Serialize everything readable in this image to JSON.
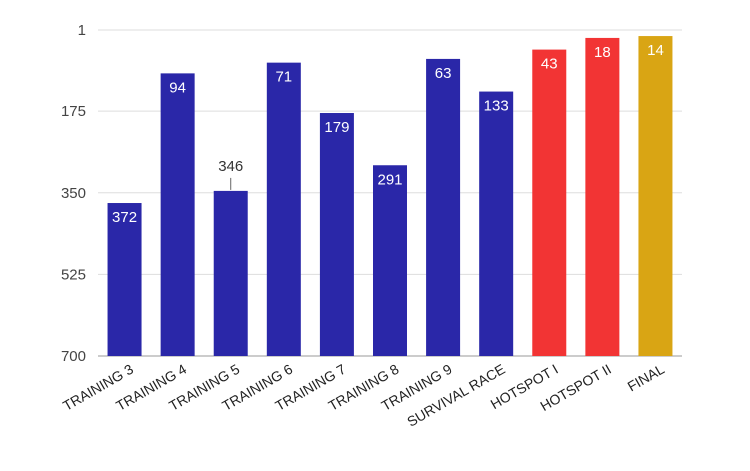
{
  "chart_data": {
    "type": "bar",
    "title": "",
    "xlabel": "",
    "ylabel": "",
    "y_reversed": true,
    "ylim": [
      1,
      700
    ],
    "yticks": [
      1,
      175,
      350,
      525,
      700
    ],
    "grid": true,
    "categories": [
      "TRAINING 3",
      "TRAINING 4",
      "TRAINING 5",
      "TRAINING 6",
      "TRAINING 7",
      "TRAINING 8",
      "TRAINING 9",
      "SURVIVAL RACE",
      "HOTSPOT I",
      "HOTSPOT II",
      "FINAL"
    ],
    "values": [
      372,
      94,
      346,
      71,
      179,
      291,
      63,
      133,
      43,
      18,
      14
    ],
    "data_labels": [
      "372",
      "94",
      "346",
      "71",
      "179",
      "291",
      "63",
      "133",
      "43",
      "18",
      "14"
    ],
    "colors": [
      "#2a27a8",
      "#2a27a8",
      "#2a27a8",
      "#2a27a8",
      "#2a27a8",
      "#2a27a8",
      "#2a27a8",
      "#2a27a8",
      "#f23434",
      "#f23434",
      "#d9a514"
    ]
  }
}
